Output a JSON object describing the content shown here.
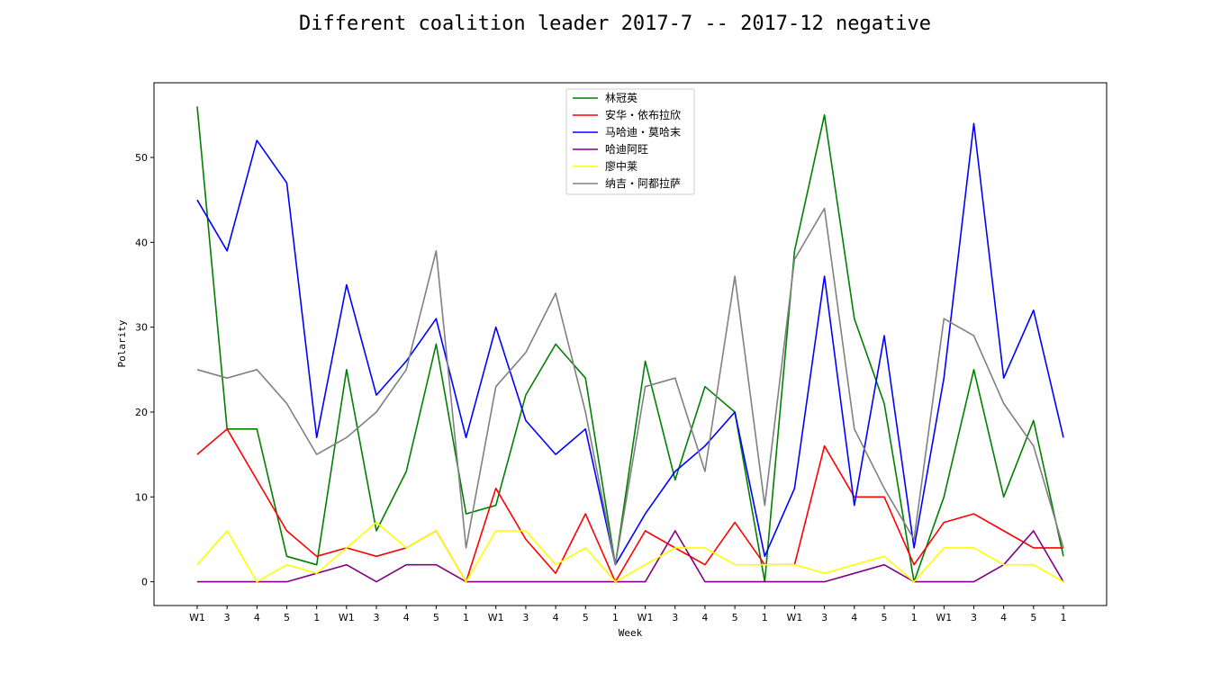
{
  "chart_data": {
    "type": "line",
    "title": "Different coalition leader 2017-7 -- 2017-12 negative",
    "xlabel": "Week",
    "ylabel": "Polarity",
    "categories": [
      "W1",
      "3",
      "4",
      "5",
      "1",
      "W1",
      "3",
      "4",
      "5",
      "1",
      "W1",
      "3",
      "4",
      "5",
      "1",
      "W1",
      "3",
      "4",
      "5",
      "1",
      "W1",
      "3",
      "4",
      "5",
      "1",
      "W1",
      "3",
      "4",
      "5",
      "1"
    ],
    "ylim": [
      -2.8,
      58.8
    ],
    "yticks": [
      0,
      10,
      20,
      30,
      40,
      50
    ],
    "grid": false,
    "legend_position": "top-center",
    "series": [
      {
        "name": "林冠英",
        "color": "#008000",
        "values": [
          56,
          18,
          18,
          3,
          2,
          25,
          6,
          13,
          28,
          8,
          9,
          22,
          28,
          24,
          2,
          26,
          12,
          23,
          20,
          0,
          39,
          55,
          31,
          21,
          0,
          10,
          25,
          10,
          19,
          3
        ]
      },
      {
        "name": "安华・依布拉欣",
        "color": "#ff0000",
        "values": [
          15,
          18,
          12,
          6,
          3,
          4,
          3,
          4,
          6,
          0,
          11,
          5,
          1,
          8,
          0,
          6,
          4,
          2,
          7,
          2,
          2,
          16,
          10,
          10,
          2,
          7,
          8,
          6,
          4,
          4
        ]
      },
      {
        "name": "马哈迪・莫哈末",
        "color": "#0000ff",
        "values": [
          45,
          39,
          52,
          47,
          17,
          35,
          22,
          26,
          31,
          17,
          30,
          19,
          15,
          18,
          2,
          8,
          13,
          16,
          20,
          3,
          11,
          36,
          9,
          29,
          4,
          24,
          54,
          24,
          32,
          17
        ]
      },
      {
        "name": "哈迪阿旺",
        "color": "#800080",
        "values": [
          0,
          0,
          0,
          0,
          1,
          2,
          0,
          2,
          2,
          0,
          0,
          0,
          0,
          0,
          0,
          0,
          6,
          0,
          0,
          0,
          0,
          0,
          1,
          2,
          0,
          0,
          0,
          2,
          6,
          0
        ]
      },
      {
        "name": "廖中莱",
        "color": "#ffff00",
        "values": [
          2,
          6,
          0,
          2,
          1,
          4,
          7,
          4,
          6,
          0,
          6,
          6,
          2,
          4,
          0,
          2,
          4,
          4,
          2,
          2,
          2,
          1,
          2,
          3,
          0,
          4,
          4,
          2,
          2,
          0
        ]
      },
      {
        "name": "纳吉・阿都拉萨",
        "color": "#808080",
        "values": [
          25,
          24,
          25,
          21,
          15,
          17,
          20,
          25,
          39,
          4,
          23,
          27,
          34,
          20,
          2,
          23,
          24,
          13,
          36,
          9,
          38,
          44,
          18,
          11,
          5,
          31,
          29,
          21,
          16,
          4
        ]
      }
    ]
  }
}
